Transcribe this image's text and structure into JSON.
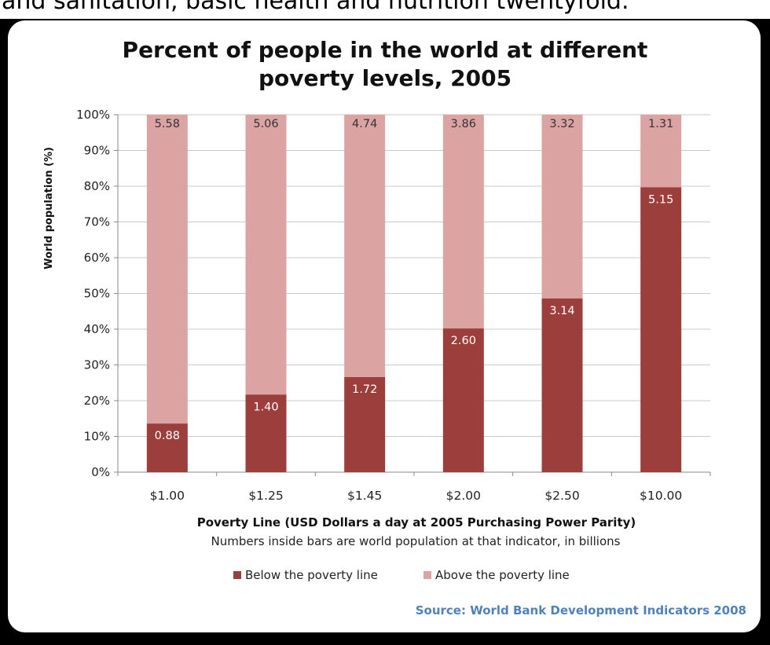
{
  "header_text": "and sanitation, basic health and nutrition twentyfold.",
  "colors": {
    "below": "#9b3e3c",
    "above": "#dca3a3",
    "grid": "#c8c8c8",
    "source": "#4f81bd",
    "label_light": "#ffffff",
    "label_dark": "#333333"
  },
  "chart_data": {
    "type": "bar",
    "stacked": true,
    "percent_stacked": true,
    "title_lines": [
      "Percent of people in the world at different",
      "poverty levels, 2005"
    ],
    "xlabel": "Poverty Line (USD Dollars a day at 2005 Purchasing Power Parity)",
    "ylabel": "World population  (%)",
    "note": "Numbers inside bars are world population at that indicator, in billions",
    "source": "Source: World Bank Development Indicators 2008",
    "categories": [
      "$1.00",
      "$1.25",
      "$1.45",
      "$2.00",
      "$2.50",
      "$10.00"
    ],
    "ylim": [
      0,
      100
    ],
    "yticks": [
      "0%",
      "10%",
      "20%",
      "30%",
      "40%",
      "50%",
      "60%",
      "70%",
      "80%",
      "90%",
      "100%"
    ],
    "grid": true,
    "legend_position": "bottom",
    "series": [
      {
        "name": "Below the poverty line",
        "percent": [
          13.6,
          21.7,
          26.6,
          40.2,
          48.6,
          79.7
        ],
        "labels": [
          "0.88",
          "1.40",
          "1.72",
          "2.60",
          "3.14",
          "5.15"
        ]
      },
      {
        "name": "Above the poverty line",
        "percent": [
          86.4,
          78.3,
          73.4,
          59.8,
          51.4,
          20.3
        ],
        "labels": [
          "5.58",
          "5.06",
          "4.74",
          "3.86",
          "3.32",
          "1.31"
        ]
      }
    ]
  }
}
